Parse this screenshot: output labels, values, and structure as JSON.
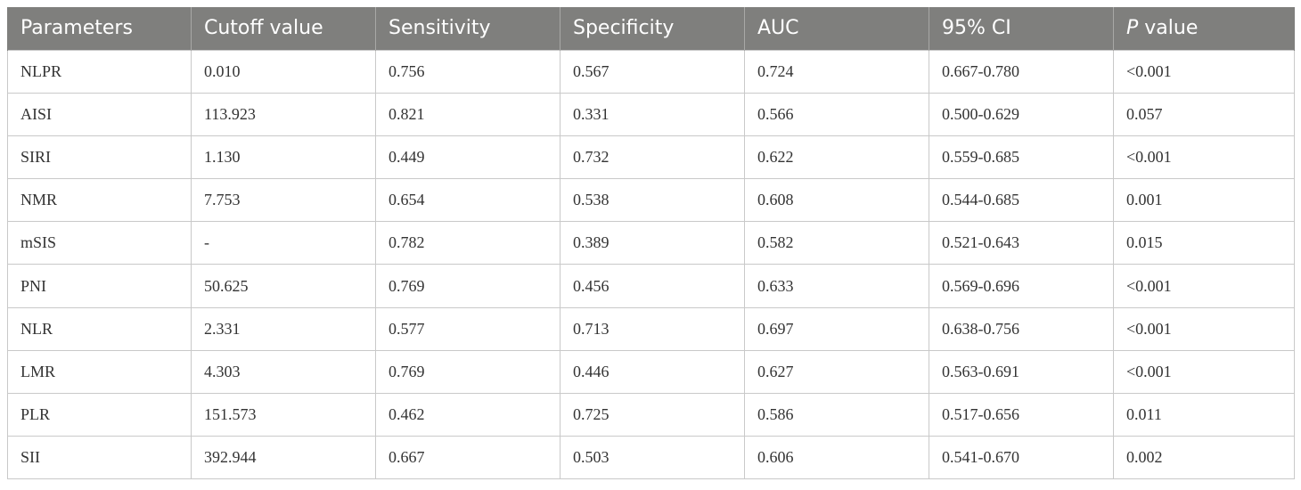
{
  "table": {
    "headers": {
      "parameters": "Parameters",
      "cutoff": "Cutoff value",
      "sensitivity": "Sensitivity",
      "specificity": "Specificity",
      "auc": "AUC",
      "ci": "95% CI",
      "p_italic": "P",
      "p_rest": " value"
    },
    "rows": [
      {
        "parameter": "NLPR",
        "cutoff": "0.010",
        "sensitivity": "0.756",
        "specificity": "0.567",
        "auc": "0.724",
        "ci": "0.667-0.780",
        "p": "<0.001"
      },
      {
        "parameter": "AISI",
        "cutoff": "113.923",
        "sensitivity": "0.821",
        "specificity": "0.331",
        "auc": "0.566",
        "ci": "0.500-0.629",
        "p": "0.057"
      },
      {
        "parameter": "SIRI",
        "cutoff": "1.130",
        "sensitivity": "0.449",
        "specificity": "0.732",
        "auc": "0.622",
        "ci": "0.559-0.685",
        "p": "<0.001"
      },
      {
        "parameter": "NMR",
        "cutoff": "7.753",
        "sensitivity": "0.654",
        "specificity": "0.538",
        "auc": "0.608",
        "ci": "0.544-0.685",
        "p": "0.001"
      },
      {
        "parameter": "mSIS",
        "cutoff": "-",
        "sensitivity": "0.782",
        "specificity": "0.389",
        "auc": "0.582",
        "ci": "0.521-0.643",
        "p": "0.015"
      },
      {
        "parameter": "PNI",
        "cutoff": "50.625",
        "sensitivity": "0.769",
        "specificity": "0.456",
        "auc": "0.633",
        "ci": "0.569-0.696",
        "p": "<0.001"
      },
      {
        "parameter": "NLR",
        "cutoff": "2.331",
        "sensitivity": "0.577",
        "specificity": "0.713",
        "auc": "0.697",
        "ci": "0.638-0.756",
        "p": "<0.001"
      },
      {
        "parameter": "LMR",
        "cutoff": "4.303",
        "sensitivity": "0.769",
        "specificity": "0.446",
        "auc": "0.627",
        "ci": "0.563-0.691",
        "p": "<0.001"
      },
      {
        "parameter": "PLR",
        "cutoff": "151.573",
        "sensitivity": "0.462",
        "specificity": "0.725",
        "auc": "0.586",
        "ci": "0.517-0.656",
        "p": "0.011"
      },
      {
        "parameter": "SII",
        "cutoff": "392.944",
        "sensitivity": "0.667",
        "specificity": "0.503",
        "auc": "0.606",
        "ci": "0.541-0.670",
        "p": "0.002"
      }
    ]
  },
  "colors": {
    "header_bg": "#7f7f7d",
    "header_text": "#ffffff",
    "border": "#c9c9c9",
    "cell_text": "#333333"
  }
}
